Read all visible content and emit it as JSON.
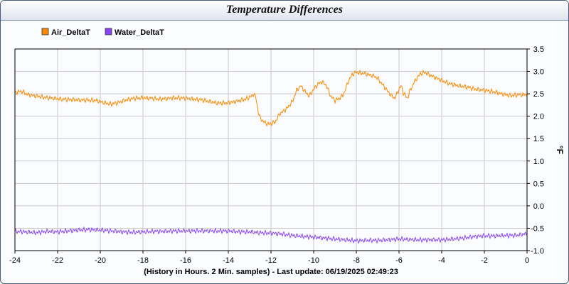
{
  "title": "Temperature Differences",
  "chart_data": {
    "type": "line",
    "title": "Temperature Differences",
    "xlabel": "(History in Hours. 2 Min. samples) - Last update: 06/19/2025 02:49:23",
    "ylabel": "°F",
    "xlim": [
      -24,
      0
    ],
    "ylim": [
      -1.0,
      3.5
    ],
    "x_ticks": [
      "-24",
      "-22",
      "-20",
      "-18",
      "-16",
      "-14",
      "-12",
      "-10",
      "-8",
      "-6",
      "-4",
      "-2",
      "0"
    ],
    "y_ticks": [
      "3.5",
      "3.0",
      "2.5",
      "2.0",
      "1.5",
      "1.0",
      "0.5",
      "0.0",
      "-0.5",
      "-1.0"
    ],
    "grid": true,
    "legend_position": "top-left",
    "series": [
      {
        "name": "Air_DeltaT",
        "color": "#ff8800",
        "points": [
          [
            -24.0,
            2.52
          ],
          [
            -23.7,
            2.56
          ],
          [
            -23.4,
            2.48
          ],
          [
            -23.0,
            2.45
          ],
          [
            -22.6,
            2.42
          ],
          [
            -22.2,
            2.4
          ],
          [
            -21.8,
            2.38
          ],
          [
            -21.4,
            2.37
          ],
          [
            -21.0,
            2.36
          ],
          [
            -20.6,
            2.36
          ],
          [
            -20.2,
            2.35
          ],
          [
            -19.8,
            2.3
          ],
          [
            -19.5,
            2.27
          ],
          [
            -19.2,
            2.3
          ],
          [
            -18.8,
            2.36
          ],
          [
            -18.4,
            2.4
          ],
          [
            -18.0,
            2.41
          ],
          [
            -17.6,
            2.4
          ],
          [
            -17.2,
            2.38
          ],
          [
            -16.8,
            2.4
          ],
          [
            -16.4,
            2.41
          ],
          [
            -16.0,
            2.4
          ],
          [
            -15.6,
            2.38
          ],
          [
            -15.2,
            2.36
          ],
          [
            -14.8,
            2.32
          ],
          [
            -14.4,
            2.29
          ],
          [
            -14.0,
            2.3
          ],
          [
            -13.6,
            2.33
          ],
          [
            -13.2,
            2.38
          ],
          [
            -12.9,
            2.45
          ],
          [
            -12.8,
            2.5
          ],
          [
            -12.7,
            2.4
          ],
          [
            -12.6,
            2.1
          ],
          [
            -12.5,
            1.95
          ],
          [
            -12.3,
            1.86
          ],
          [
            -12.1,
            1.82
          ],
          [
            -11.8,
            1.87
          ],
          [
            -11.6,
            2.05
          ],
          [
            -11.3,
            2.15
          ],
          [
            -11.0,
            2.32
          ],
          [
            -10.8,
            2.58
          ],
          [
            -10.6,
            2.68
          ],
          [
            -10.4,
            2.55
          ],
          [
            -10.2,
            2.45
          ],
          [
            -10.0,
            2.6
          ],
          [
            -9.8,
            2.72
          ],
          [
            -9.6,
            2.77
          ],
          [
            -9.4,
            2.68
          ],
          [
            -9.2,
            2.45
          ],
          [
            -9.0,
            2.35
          ],
          [
            -8.8,
            2.4
          ],
          [
            -8.6,
            2.48
          ],
          [
            -8.4,
            2.75
          ],
          [
            -8.2,
            2.93
          ],
          [
            -8.0,
            2.98
          ],
          [
            -7.6,
            2.95
          ],
          [
            -7.2,
            2.9
          ],
          [
            -7.0,
            2.85
          ],
          [
            -6.8,
            2.72
          ],
          [
            -6.6,
            2.6
          ],
          [
            -6.4,
            2.48
          ],
          [
            -6.2,
            2.4
          ],
          [
            -6.0,
            2.6
          ],
          [
            -5.9,
            2.68
          ],
          [
            -5.8,
            2.52
          ],
          [
            -5.6,
            2.4
          ],
          [
            -5.5,
            2.55
          ],
          [
            -5.3,
            2.75
          ],
          [
            -5.0,
            2.95
          ],
          [
            -4.8,
            2.98
          ],
          [
            -4.4,
            2.88
          ],
          [
            -4.0,
            2.8
          ],
          [
            -3.6,
            2.72
          ],
          [
            -3.2,
            2.68
          ],
          [
            -2.8,
            2.65
          ],
          [
            -2.4,
            2.6
          ],
          [
            -2.0,
            2.58
          ],
          [
            -1.6,
            2.55
          ],
          [
            -1.2,
            2.5
          ],
          [
            -0.8,
            2.46
          ],
          [
            -0.4,
            2.48
          ],
          [
            0.0,
            2.48
          ]
        ]
      },
      {
        "name": "Water_DeltaT",
        "color": "#8844ff",
        "points": [
          [
            -24.0,
            -0.57
          ],
          [
            -23.5,
            -0.58
          ],
          [
            -23.0,
            -0.6
          ],
          [
            -22.5,
            -0.57
          ],
          [
            -22.0,
            -0.58
          ],
          [
            -21.5,
            -0.56
          ],
          [
            -21.0,
            -0.54
          ],
          [
            -20.5,
            -0.53
          ],
          [
            -20.0,
            -0.54
          ],
          [
            -19.5,
            -0.56
          ],
          [
            -19.0,
            -0.58
          ],
          [
            -18.5,
            -0.59
          ],
          [
            -18.0,
            -0.58
          ],
          [
            -17.5,
            -0.57
          ],
          [
            -17.0,
            -0.57
          ],
          [
            -16.5,
            -0.56
          ],
          [
            -16.0,
            -0.56
          ],
          [
            -15.5,
            -0.56
          ],
          [
            -15.0,
            -0.56
          ],
          [
            -14.5,
            -0.56
          ],
          [
            -14.0,
            -0.56
          ],
          [
            -13.5,
            -0.58
          ],
          [
            -13.0,
            -0.58
          ],
          [
            -12.5,
            -0.6
          ],
          [
            -12.0,
            -0.61
          ],
          [
            -11.5,
            -0.63
          ],
          [
            -11.0,
            -0.66
          ],
          [
            -10.5,
            -0.68
          ],
          [
            -10.0,
            -0.7
          ],
          [
            -9.5,
            -0.72
          ],
          [
            -9.0,
            -0.74
          ],
          [
            -8.5,
            -0.76
          ],
          [
            -8.0,
            -0.78
          ],
          [
            -7.5,
            -0.77
          ],
          [
            -7.0,
            -0.77
          ],
          [
            -6.5,
            -0.76
          ],
          [
            -6.0,
            -0.74
          ],
          [
            -5.5,
            -0.75
          ],
          [
            -5.0,
            -0.76
          ],
          [
            -4.5,
            -0.76
          ],
          [
            -4.0,
            -0.76
          ],
          [
            -3.5,
            -0.74
          ],
          [
            -3.0,
            -0.72
          ],
          [
            -2.5,
            -0.69
          ],
          [
            -2.0,
            -0.67
          ],
          [
            -1.5,
            -0.67
          ],
          [
            -1.0,
            -0.66
          ],
          [
            -0.5,
            -0.66
          ],
          [
            0.0,
            -0.62
          ]
        ]
      }
    ]
  }
}
